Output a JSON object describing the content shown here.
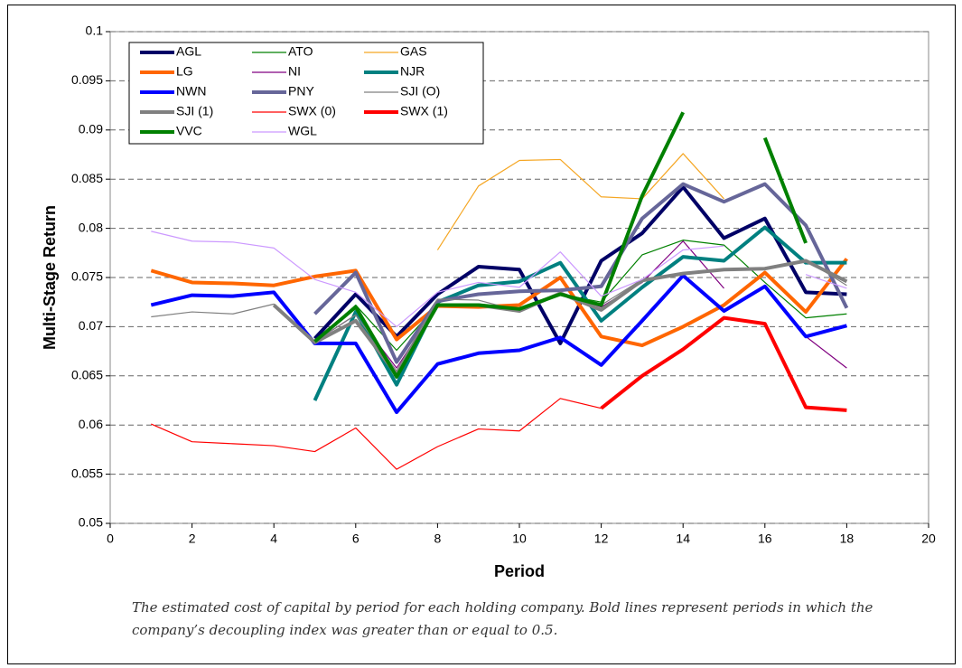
{
  "chart_data": {
    "type": "line",
    "xlabel": "Period",
    "ylabel": "Multi-Stage Return",
    "caption": "The estimated cost of capital by period for each holding company. Bold lines represent periods in which the company’s decoupling index was greater than or equal to 0.5.",
    "x": [
      1,
      2,
      3,
      4,
      5,
      6,
      7,
      8,
      9,
      10,
      11,
      12,
      13,
      14,
      15,
      16,
      17,
      18
    ],
    "xlim": [
      0,
      20
    ],
    "xticks": [
      0,
      2,
      4,
      6,
      8,
      10,
      12,
      14,
      16,
      18,
      20
    ],
    "ylim": [
      0.05,
      0.1
    ],
    "yticks": [
      0.05,
      0.055,
      0.06,
      0.065,
      0.07,
      0.075,
      0.08,
      0.085,
      0.09,
      0.095,
      0.1
    ],
    "grid": true,
    "legend": "upper left",
    "series": [
      {
        "name": "AGL",
        "color": "#000066",
        "bold": true,
        "values": [
          null,
          null,
          null,
          null,
          0.0688,
          0.0733,
          0.069,
          0.0733,
          0.0761,
          0.0758,
          0.0683,
          0.0767,
          0.0795,
          0.0842,
          0.079,
          0.081,
          0.0735,
          0.0733
        ]
      },
      {
        "name": "ATO",
        "color": "#008000",
        "bold": false,
        "values": [
          null,
          null,
          null,
          null,
          0.0685,
          0.0722,
          0.0676,
          0.0722,
          0.0722,
          0.0718,
          0.0733,
          0.0725,
          0.0773,
          0.0788,
          0.0783,
          0.0745,
          0.0709,
          0.0713
        ]
      },
      {
        "name": "GAS",
        "color": "#f5a623",
        "bold": false,
        "values": [
          null,
          null,
          null,
          null,
          null,
          null,
          null,
          0.0778,
          0.0843,
          0.0869,
          0.087,
          0.0832,
          0.083,
          0.0876,
          0.083,
          null,
          null,
          null
        ]
      },
      {
        "name": "LG",
        "color": "#ff6600",
        "bold": true,
        "values": [
          0.0757,
          0.0745,
          0.0744,
          0.0742,
          0.0751,
          0.0757,
          0.0687,
          0.0721,
          0.072,
          0.0722,
          0.075,
          0.069,
          0.0681,
          0.07,
          0.0722,
          0.0755,
          0.0715,
          0.0769
        ]
      },
      {
        "name": "NI",
        "color": "#800080",
        "bold": false,
        "values": [
          null,
          null,
          null,
          null,
          0.0685,
          0.0712,
          0.0658,
          0.0722,
          0.0722,
          0.0718,
          0.0735,
          0.072,
          0.0745,
          0.0787,
          0.0739,
          null,
          0.069,
          0.0658
        ]
      },
      {
        "name": "NJR",
        "color": "#008080",
        "bold": true,
        "values": [
          null,
          null,
          null,
          null,
          0.0625,
          0.0715,
          0.0641,
          0.0725,
          0.0742,
          0.0746,
          0.0765,
          0.0706,
          0.074,
          0.0771,
          0.0767,
          0.0801,
          0.0765,
          0.0765
        ]
      },
      {
        "name": "NWN",
        "color": "#0000ff",
        "bold": true,
        "values": [
          0.0722,
          0.0732,
          0.0731,
          0.0735,
          0.0683,
          0.0683,
          0.0613,
          0.0662,
          0.0673,
          0.0676,
          0.0689,
          0.0661,
          0.0706,
          0.0752,
          0.0716,
          0.0741,
          0.069,
          0.0701
        ]
      },
      {
        "name": "PNY",
        "color": "#666699",
        "bold": true,
        "values": [
          null,
          null,
          null,
          null,
          0.0713,
          0.0755,
          0.0664,
          0.0726,
          0.0733,
          0.0736,
          0.0737,
          0.0741,
          0.081,
          0.0845,
          0.0827,
          0.0845,
          0.0803,
          0.0719
        ]
      },
      {
        "name": "SJI (O)",
        "color": "#808080",
        "bold": false,
        "values": [
          0.071,
          0.0715,
          0.0713,
          0.0723,
          0.0685,
          0.0712,
          0.0655,
          0.0728,
          0.0727,
          0.0716,
          0.0733,
          0.0722,
          0.0748,
          0.0755,
          0.0758,
          0.076,
          0.0768,
          0.0742
        ]
      },
      {
        "name": "SJI (1)",
        "color": "#808080",
        "bold": true,
        "values": [
          null,
          null,
          null,
          0.0722,
          0.0684,
          0.0706,
          0.0651,
          0.0722,
          0.0722,
          0.0716,
          0.0734,
          0.0717,
          0.0747,
          0.0754,
          0.0758,
          0.0759,
          0.0767,
          0.0746
        ]
      },
      {
        "name": "SWX (0)",
        "color": "#ff0000",
        "bold": false,
        "values": [
          0.0601,
          0.0583,
          0.0581,
          0.0579,
          0.0573,
          0.0597,
          0.0555,
          0.0578,
          0.0596,
          0.0594,
          0.0627,
          0.0617,
          null,
          null,
          null,
          null,
          null,
          null
        ]
      },
      {
        "name": "SWX (1)",
        "color": "#ff0000",
        "bold": true,
        "values": [
          null,
          null,
          null,
          null,
          null,
          null,
          null,
          null,
          null,
          null,
          null,
          0.0617,
          0.065,
          0.0677,
          0.0709,
          0.0703,
          0.0618,
          0.0615
        ]
      },
      {
        "name": "VVC",
        "color": "#008000",
        "bold": true,
        "values": [
          null,
          null,
          null,
          null,
          0.0685,
          0.072,
          0.0649,
          0.0722,
          0.0722,
          0.0718,
          0.0733,
          0.0722,
          0.0833,
          0.0918,
          null,
          0.0892,
          0.0785,
          null
        ]
      },
      {
        "name": "WGL",
        "color": "#cc99ff",
        "bold": false,
        "values": [
          0.0797,
          0.0787,
          0.0786,
          0.078,
          0.0748,
          0.0735,
          0.07,
          0.0735,
          0.0745,
          0.074,
          0.0776,
          0.0731,
          0.0748,
          0.0778,
          0.0782,
          null,
          0.0753,
          0.0739
        ]
      }
    ]
  }
}
